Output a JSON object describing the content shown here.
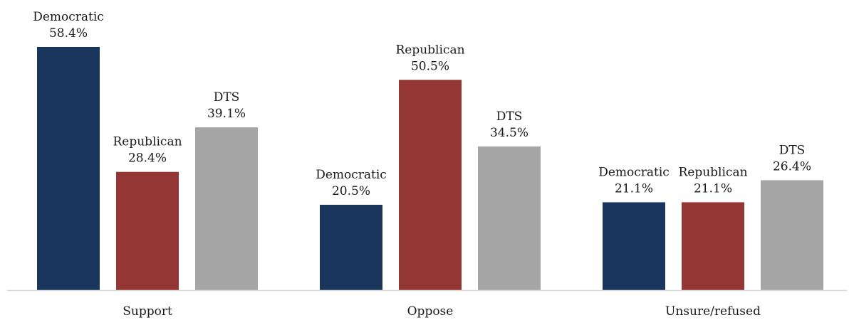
{
  "chart_data": {
    "type": "bar",
    "title": "",
    "xlabel": "",
    "ylabel": "",
    "ylim": [
      0,
      60
    ],
    "grid": false,
    "legend": "none",
    "categories": [
      "Support",
      "Oppose",
      "Unsure/refused"
    ],
    "series": [
      {
        "name": "Democratic",
        "color": "#1b365d",
        "values": [
          58.4,
          20.5,
          21.1
        ],
        "labels": [
          "58.4%",
          "20.5%",
          "21.1%"
        ]
      },
      {
        "name": "Republican",
        "color": "#943634",
        "values": [
          28.4,
          50.5,
          21.1
        ],
        "labels": [
          "28.4%",
          "50.5%",
          "21.1%"
        ]
      },
      {
        "name": "DTS",
        "color": "#a6a6a6",
        "values": [
          39.1,
          34.5,
          26.4
        ],
        "labels": [
          "39.1%",
          "34.5%",
          "26.4%"
        ]
      }
    ]
  }
}
